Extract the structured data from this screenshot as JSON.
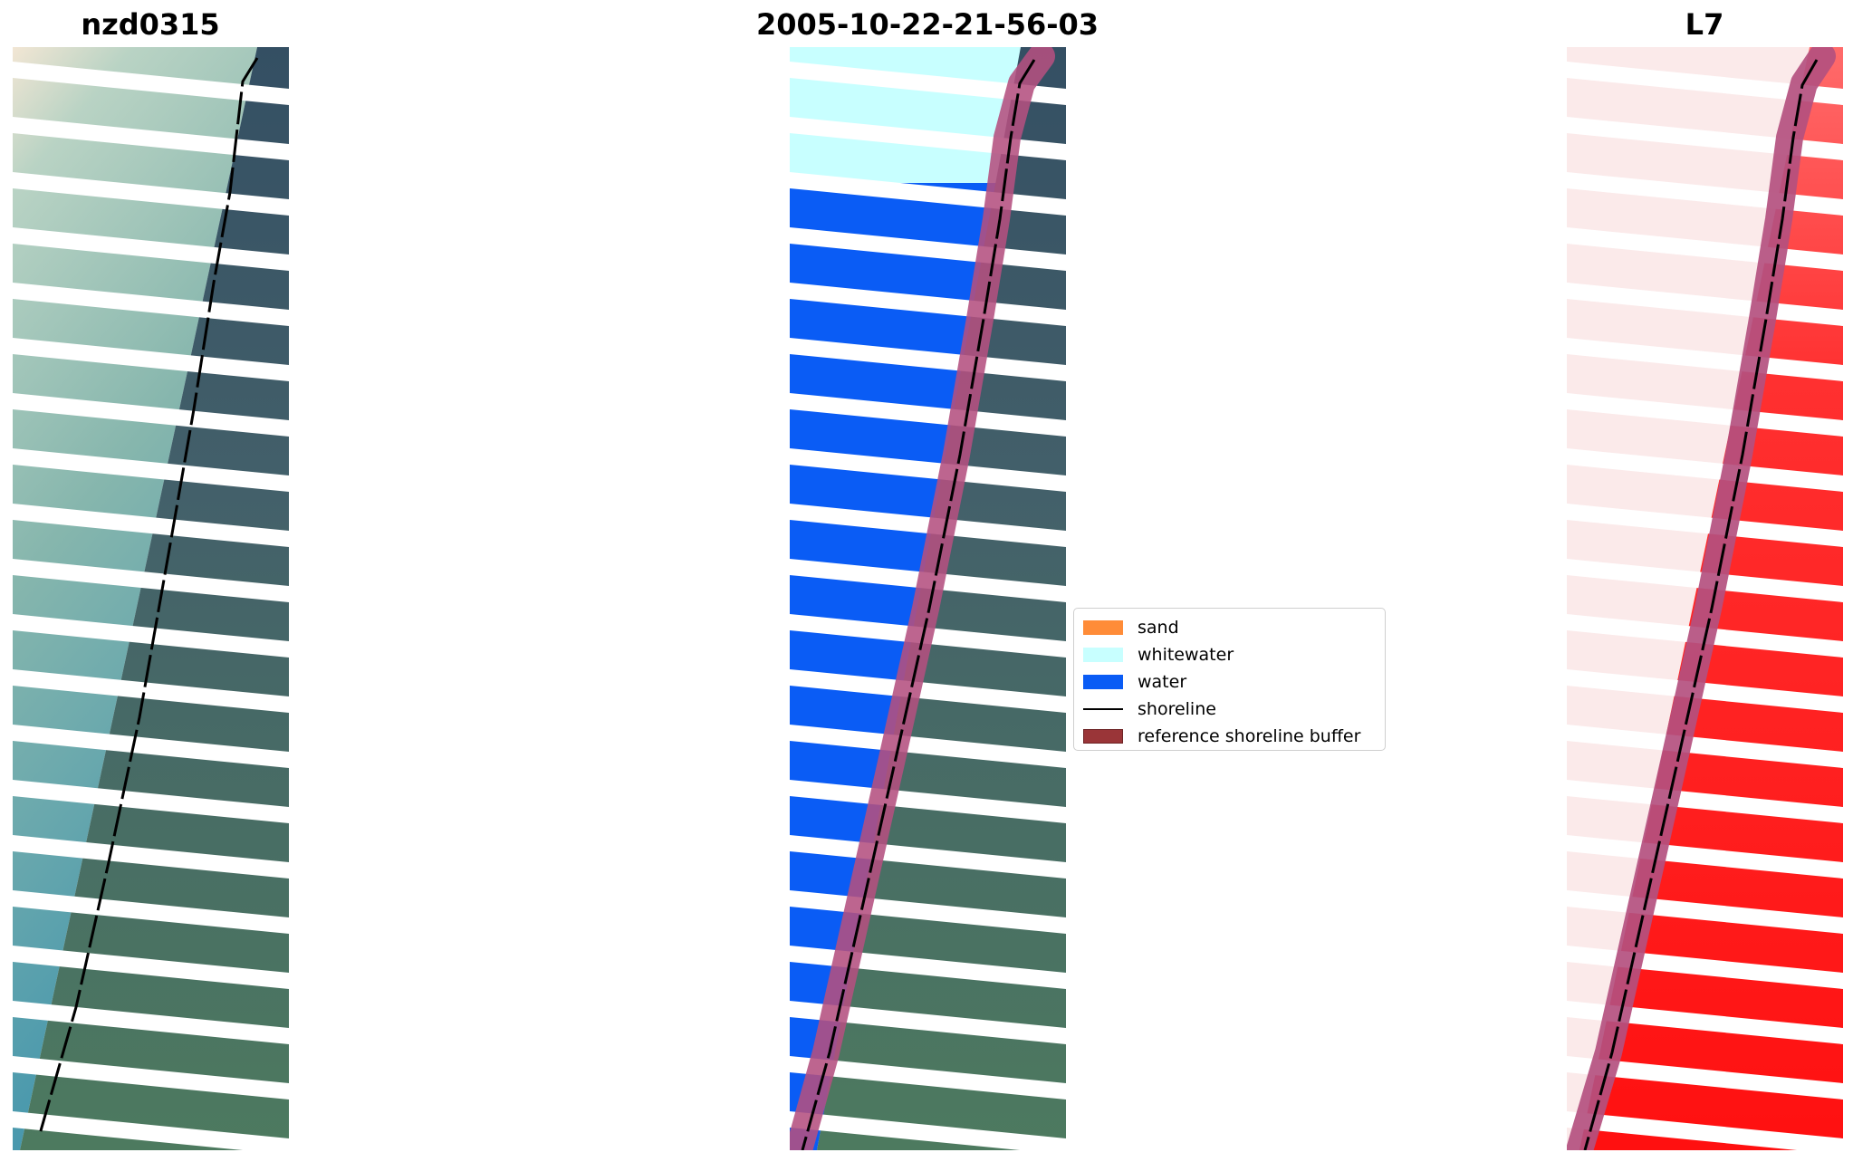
{
  "panels": [
    {
      "title": "nzd0315"
    },
    {
      "title": "2005-10-22-21-56-03"
    },
    {
      "title": "L7"
    }
  ],
  "legend": [
    {
      "label": "sand",
      "color": "#ff8c38"
    },
    {
      "label": "whitewater",
      "color": "#c8ffff"
    },
    {
      "label": "water",
      "color": "#0a5cf5"
    },
    {
      "label": "shoreline",
      "color": "#000000"
    },
    {
      "label": "reference shoreline buffer",
      "color": "#9a3538"
    }
  ],
  "colors": {
    "ocean_light": "#a7cbbd",
    "ocean_deep": "#3f8fa8",
    "land_dark": "#3d5868",
    "land_green": "#4f7a64",
    "water_class": "#0a5cf5",
    "whitewater_class": "#c8ffff",
    "buffer": "#b4507f",
    "ndwi_red": "#ff1010",
    "shoreline": "#000000"
  }
}
